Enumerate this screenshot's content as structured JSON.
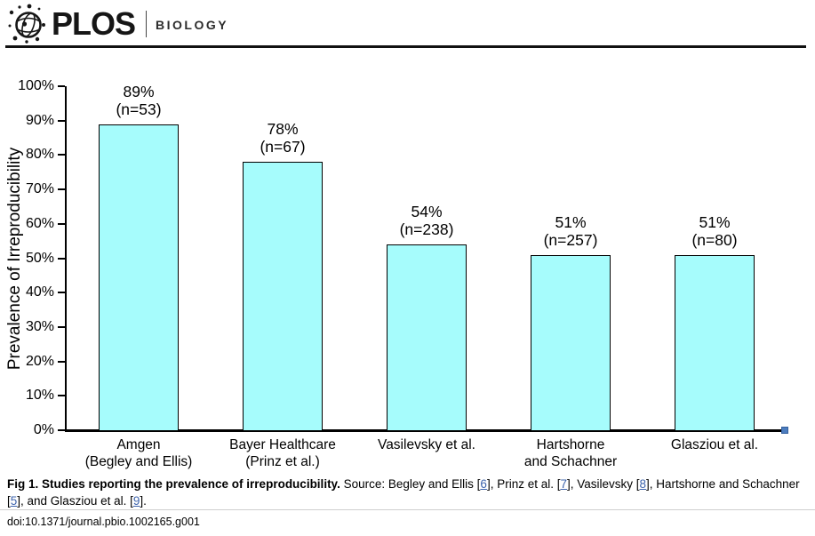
{
  "header": {
    "brand": "PLOS",
    "journal": "BIOLOGY"
  },
  "chart_data": {
    "type": "bar",
    "title": "",
    "xlabel": "",
    "ylabel": "Prevalence of Irreproducibility",
    "ylim": [
      0,
      100
    ],
    "ytick_step": 10,
    "ytick_labels": [
      "0%",
      "10%",
      "20%",
      "30%",
      "40%",
      "50%",
      "60%",
      "70%",
      "80%",
      "90%",
      "100%"
    ],
    "grid": false,
    "legend": false,
    "bar_fill": "#a6fcfc",
    "bar_border": "#000000",
    "categories": [
      "Amgen (Begley and Ellis)",
      "Bayer Healthcare (Prinz et al.)",
      "Vasilevsky et al.",
      "Hartshorne and Schachner",
      "Glasziou et al."
    ],
    "values": [
      89,
      78,
      54,
      51,
      51
    ],
    "series": [
      {
        "study": "Amgen (Begley and Ellis)",
        "percent": 89,
        "n": 53,
        "category_lines": [
          "Amgen",
          "(Begley and Ellis)"
        ],
        "label_lines": [
          "89%",
          "(n=53)"
        ]
      },
      {
        "study": "Bayer Healthcare (Prinz et al.)",
        "percent": 78,
        "n": 67,
        "category_lines": [
          "Bayer Healthcare",
          "(Prinz et al.)"
        ],
        "label_lines": [
          "78%",
          "(n=67)"
        ]
      },
      {
        "study": "Vasilevsky et al.",
        "percent": 54,
        "n": 238,
        "category_lines": [
          "Vasilevsky et al."
        ],
        "label_lines": [
          "54%",
          "(n=238)"
        ]
      },
      {
        "study": "Hartshorne and Schachner",
        "percent": 51,
        "n": 257,
        "category_lines": [
          "Hartshorne",
          "and Schachner"
        ],
        "label_lines": [
          "51%",
          "(n=257)"
        ]
      },
      {
        "study": "Glasziou et al.",
        "percent": 51,
        "n": 80,
        "category_lines": [
          "Glasziou et al."
        ],
        "label_lines": [
          "51%",
          "(n=80)"
        ]
      }
    ]
  },
  "caption": {
    "bold": "Fig 1. Studies reporting the prevalence of irreproducibility.",
    "segments": [
      {
        "text": " Source: Begley and Ellis ["
      },
      {
        "text": "6",
        "link": true
      },
      {
        "text": "], Prinz et al. ["
      },
      {
        "text": "7",
        "link": true
      },
      {
        "text": "], Vasilevsky ["
      },
      {
        "text": "8",
        "link": true
      },
      {
        "text": "], Hartshorne and Schachner ["
      },
      {
        "text": "5",
        "link": true
      },
      {
        "text": "], and Glasziou et al. ["
      },
      {
        "text": "9",
        "link": true
      },
      {
        "text": "]."
      }
    ]
  },
  "doi": "doi:10.1371/journal.pbio.1002165.g001",
  "colors": {
    "link_blue": "#3e64ad",
    "handle_blue": "#4c7dbf",
    "bar_cyan": "#a6fcfc"
  }
}
